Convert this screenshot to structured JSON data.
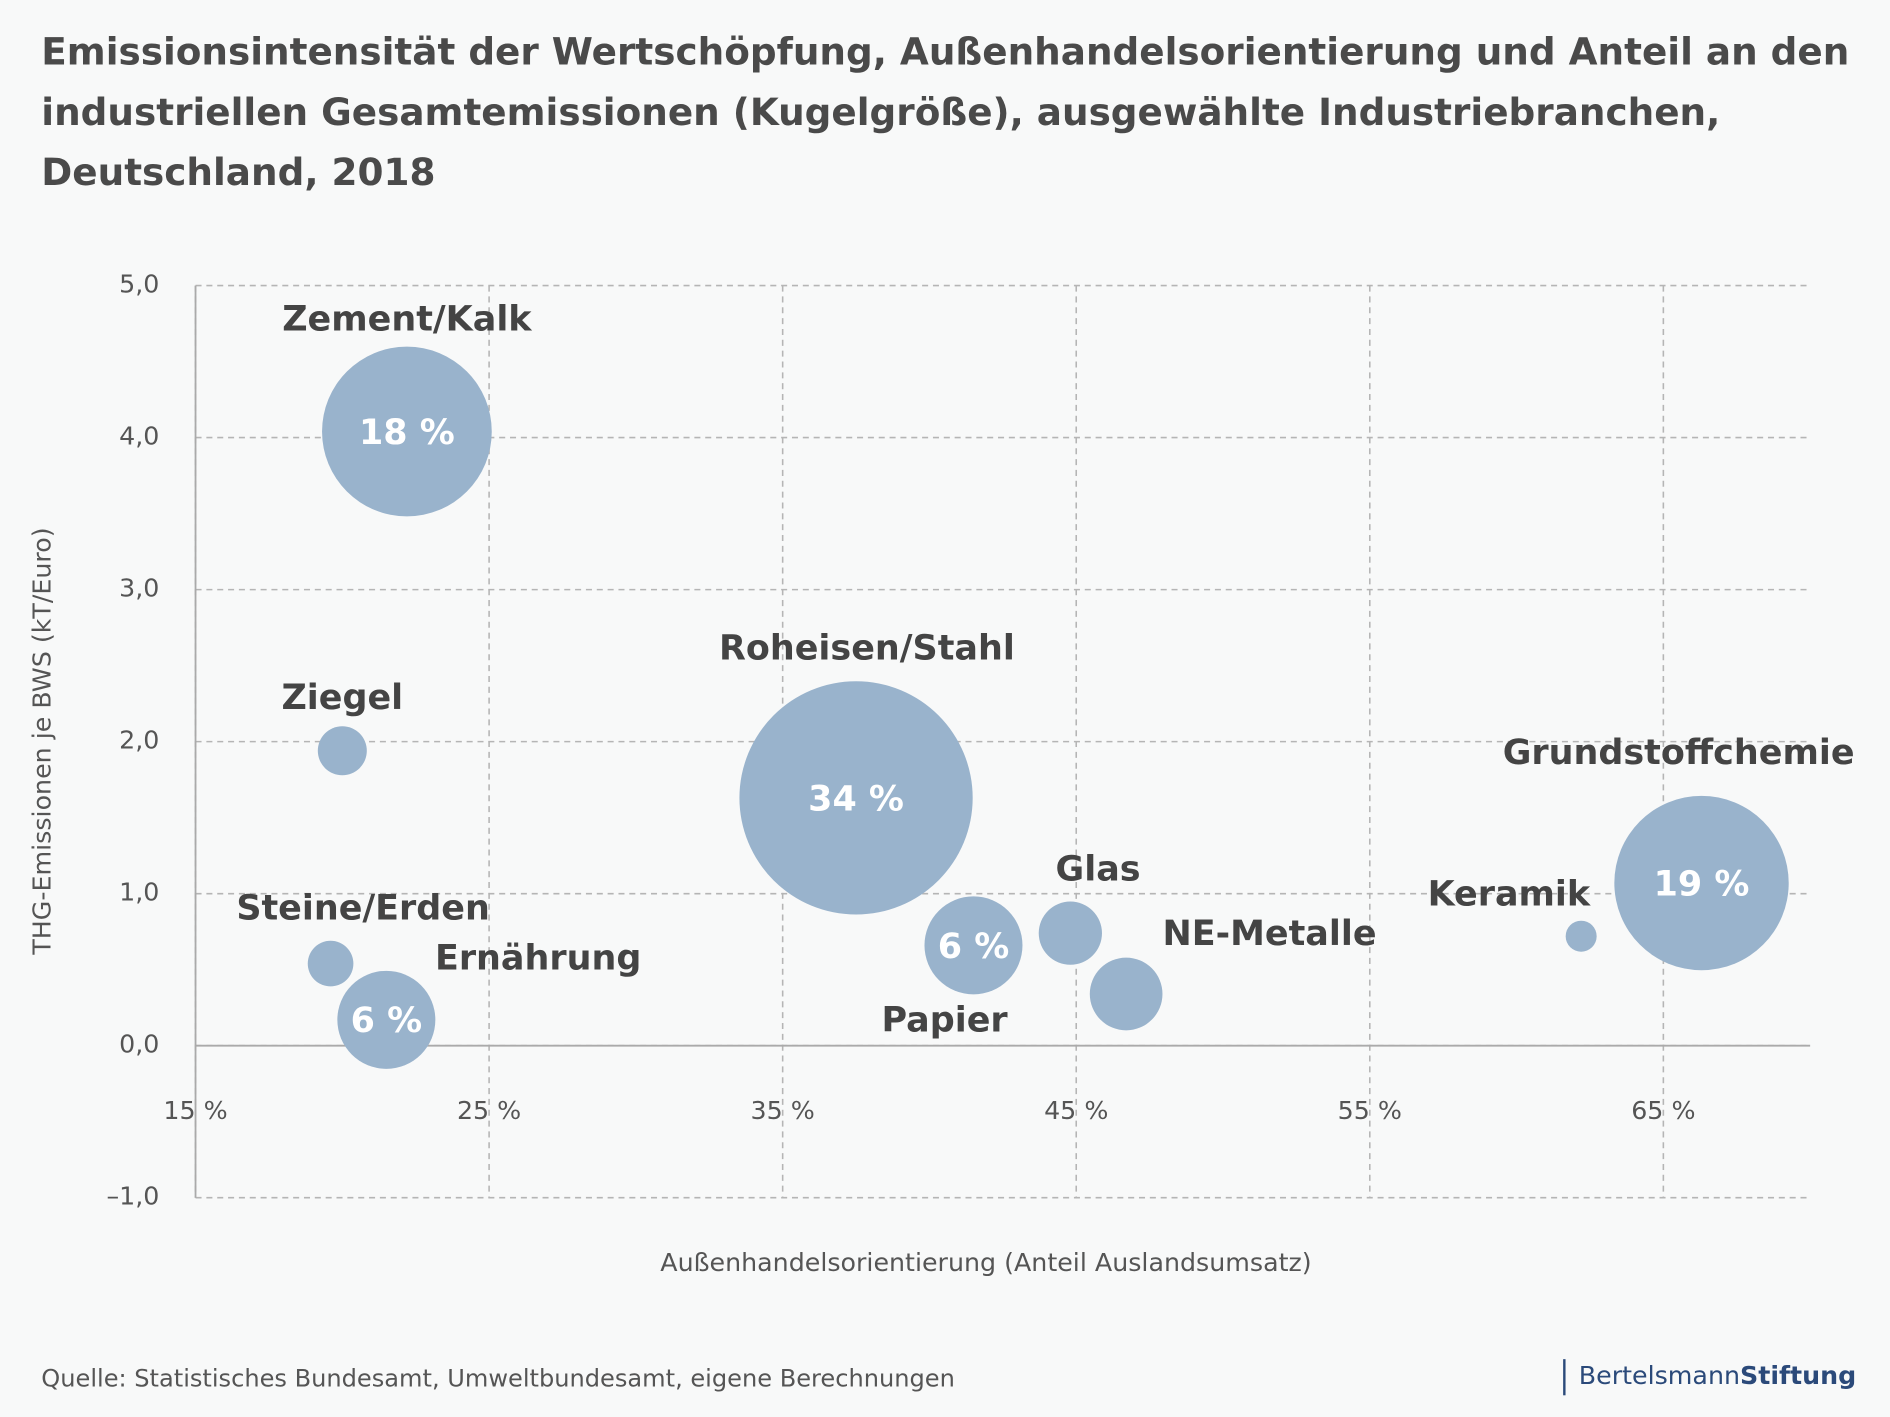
{
  "chart_data": {
    "type": "bubble",
    "title": [
      "Emissionsintensität der Wertschöpfung, Außenhandelsorientierung und Anteil an den",
      "industriellen Gesamtemissionen (Kugelgröße), ausgewählte Industriebranchen,",
      "Deutschland, 2018"
    ],
    "xlabel": "Außenhandelsorientierung (Anteil Auslandsumsatz)",
    "ylabel": "THG-Emissionen je BWS (kT/Euro)",
    "labels": [
      "Zement/Kalk",
      "Roheisen/Stahl",
      "Grundstoffchemie",
      "Ziegel",
      "Steine/Erden",
      "Ernährung",
      "Papier",
      "Glas",
      "NE-Metalle",
      "Keramik"
    ],
    "x": [
      22.2,
      37.5,
      66.3,
      20.0,
      19.6,
      21.5,
      41.5,
      44.8,
      46.7,
      62.2
    ],
    "values": [
      4.04,
      1.63,
      1.07,
      1.94,
      0.54,
      0.17,
      0.66,
      0.74,
      0.34,
      0.72
    ],
    "sizes": [
      18,
      34,
      19,
      1.5,
      1.3,
      6,
      6,
      2.5,
      3.3,
      0.6
    ],
    "value_labels": [
      "18 %",
      "34 %",
      "19 %",
      null,
      null,
      "6 %",
      "6 %",
      null,
      null,
      null
    ],
    "color": "#99b3cc",
    "xlim": [
      15,
      70
    ],
    "ylim": [
      -1,
      5
    ],
    "xticks": [
      {
        "value": 15,
        "label": "15 %"
      },
      {
        "value": 25,
        "label": "25 %"
      },
      {
        "value": 35,
        "label": "35 %"
      },
      {
        "value": 45,
        "label": "45 %"
      },
      {
        "value": 55,
        "label": "55 %"
      },
      {
        "value": 65,
        "label": "65 %"
      }
    ],
    "yticks": [
      {
        "value": -1,
        "label": "–1,0"
      },
      {
        "value": 0,
        "label": "0,0"
      },
      {
        "value": 1,
        "label": "1,0"
      },
      {
        "value": 2,
        "label": "2,0"
      },
      {
        "value": 3,
        "label": "3,0"
      },
      {
        "value": 4,
        "label": "4,0"
      },
      {
        "value": 5,
        "label": "5,0"
      }
    ],
    "grid": true,
    "source": "Quelle: Statistisches Bundesamt, Umweltbundesamt, eigene Berechnungen",
    "logo": [
      "Bertelsmann",
      "Stiftung"
    ]
  }
}
